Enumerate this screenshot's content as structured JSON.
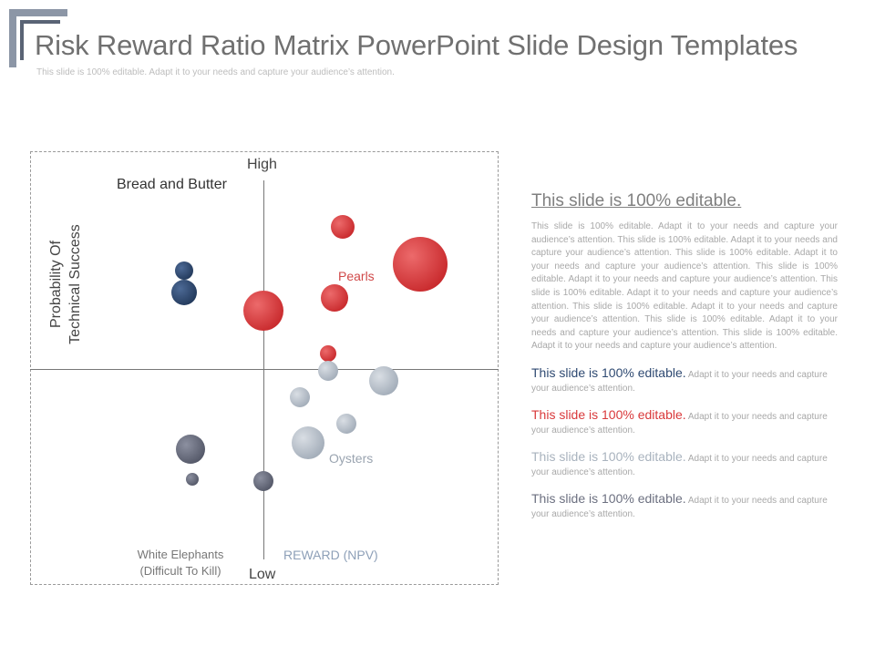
{
  "header": {
    "title": "Risk Reward Ratio Matrix PowerPoint Slide Design Templates",
    "subtitle": "This slide is 100% editable. Adapt it to your needs and capture your audience’s attention."
  },
  "matrix": {
    "high_label": "High",
    "low_label": "Low",
    "y_axis_label_1": "Probability Of",
    "y_axis_label_2": "Technical Success",
    "x_axis_label": "REWARD (NPV)",
    "quadrants": {
      "bread_and_butter": "Bread and Butter",
      "pearls": "Pearls",
      "oysters": "Oysters",
      "white_elephants_1": "White Elephants",
      "white_elephants_2": "(Difficult To Kill)"
    },
    "colors": {
      "navy": "#2f4a72",
      "red": "#d9393b",
      "light_gray": "#b7c0ca",
      "dark_gray": "#6c7080"
    },
    "bubbles": [
      {
        "group": "bread-and-butter",
        "color": "navy"
      },
      {
        "group": "bread-and-butter",
        "color": "navy"
      },
      {
        "group": "pearls",
        "color": "red"
      },
      {
        "group": "pearls",
        "color": "red"
      },
      {
        "group": "pearls",
        "color": "red"
      },
      {
        "group": "pearls",
        "color": "red"
      },
      {
        "group": "pearls",
        "color": "red"
      },
      {
        "group": "oysters",
        "color": "light_gray"
      },
      {
        "group": "oysters",
        "color": "light_gray"
      },
      {
        "group": "oysters",
        "color": "light_gray"
      },
      {
        "group": "oysters",
        "color": "light_gray"
      },
      {
        "group": "oysters",
        "color": "light_gray"
      },
      {
        "group": "white-elephants",
        "color": "dark_gray"
      },
      {
        "group": "white-elephants",
        "color": "dark_gray"
      },
      {
        "group": "white-elephants",
        "color": "dark_gray"
      }
    ]
  },
  "panel": {
    "title": "This slide is 100% editable.",
    "body": "This slide is 100% editable. Adapt it to your needs and capture your audience’s attention. This slide is 100% editable. Adapt it to your needs and capture your audience’s attention. This slide is 100% editable. Adapt it to your needs and capture your audience’s attention. This slide is 100% editable. Adapt it to your needs and capture your audience’s attention. This slide is 100% editable. Adapt it to your needs and capture your audience’s attention. This slide is 100% editable. Adapt it to your needs and capture your audience’s attention. This slide is 100% editable. Adapt it to your needs and capture your audience’s attention. This slide is 100% editable. Adapt it to your needs and capture your audience’s attention.",
    "items": [
      {
        "head": "This slide is 100% editable.",
        "text": " Adapt it to your needs and capture your audience’s attention.",
        "color": "#2f4a72"
      },
      {
        "head": "This slide is 100% editable.",
        "text": " Adapt it to your needs and capture your audience’s attention.",
        "color": "#d9393b"
      },
      {
        "head": "This slide is 100% editable.",
        "text": " Adapt it to your needs and capture your audience’s attention.",
        "color": "#a9b3be"
      },
      {
        "head": "This slide is 100% editable.",
        "text": " Adapt it to your needs and capture your audience’s attention.",
        "color": "#6c7080"
      }
    ]
  }
}
